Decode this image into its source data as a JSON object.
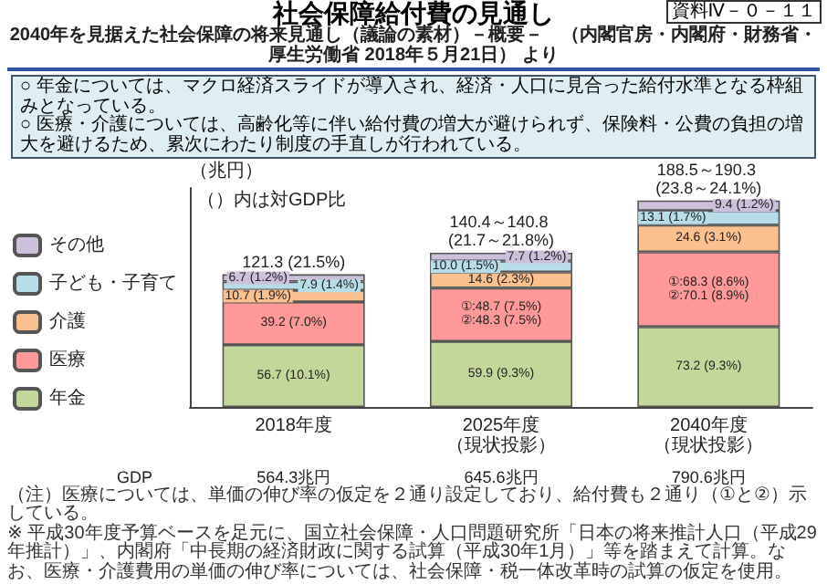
{
  "chart_data": {
    "type": "bar",
    "title": "社会保障給付費の見通し",
    "subtitle": "2040年を見据えた社会保障の将来見通し（議論の素材）－概要－　（内閣官房・内閣府・財務省・厚生労働省 2018年５月21日） より",
    "ylabel": "（兆円）",
    "categories": [
      "2018年度",
      "2025年度（現状投影）",
      "2040年度（現状投影）"
    ],
    "stacked": true,
    "ylim": [
      0,
      200
    ],
    "tick_labels": "x",
    "legend": "left",
    "series": [
      {
        "name": "年金",
        "color": "#c4d79b",
        "values": [
          56.7,
          59.9,
          73.2
        ],
        "value_labels": [
          "56.7 (10.1%)",
          "59.9 (9.3%)",
          "73.2 (9.3%)"
        ]
      },
      {
        "name": "医療",
        "color": "#ff9999",
        "values": [
          39.2,
          48.7,
          68.3
        ],
        "value_labels": [
          "39.2 (7.0%)",
          "①:48.7 (7.5%)\n②:48.3 (7.5%)",
          "①:68.3 (8.6%)\n②:70.1 (8.9%)"
        ]
      },
      {
        "name": "介護",
        "color": "#fac090",
        "values": [
          10.7,
          14.6,
          24.6
        ],
        "value_labels": [
          "10.7 (1.9%)",
          "14.6 (2.3%)",
          "24.6 (3.1%)"
        ]
      },
      {
        "name": "子ども・子育て",
        "color": "#b7dee8",
        "values": [
          7.9,
          10.0,
          13.1
        ],
        "value_labels": [
          "7.9 (1.4%)",
          "10.0 (1.5%)",
          "13.1 (1.7%)"
        ]
      },
      {
        "name": "その他",
        "color": "#ccc0da",
        "values": [
          6.7,
          7.7,
          9.4
        ],
        "value_labels": [
          "6.7 (1.2%)",
          "7.7 (1.2%)",
          "9.4 (1.2%)"
        ]
      }
    ],
    "totals": [
      "121.3 (21.5%)",
      "140.4～140.8 (21.7～21.8%)",
      "188.5～190.3 (23.8～24.1%)"
    ],
    "annotations": [
      "資料Ⅳ－０－１１",
      "○ 年金については、マクロ経済スライドが導入され、経済・人口に見合った給付水準となる枠組みとなっている。",
      "○ 医療・介護については、高齢化等に伴い給付費の増大が避けられず、保険料・公費の負担の増大を避けるため、累次にわたり制度の手直しが行われている。",
      "（）内は対GDP比",
      "GDP",
      "564.3兆円",
      "645.6兆円",
      "790.6兆円",
      "（注）医療については、単価の伸び率の仮定を２通り設定しており、給付費も２通り（①と②）示している。",
      "※ 平成30年度予算ベースを足元に、国立社会保障・人口問題研究所「日本の将来推計人口（平成29年推計）」、内閣府「中長期の経済財政に関する試算（平成30年1月）」等を踏まえて計算。なお、医療・介護費用の単価の伸び率については、社会保障・税一体改革時の試算の仮定を使用。"
    ]
  }
}
